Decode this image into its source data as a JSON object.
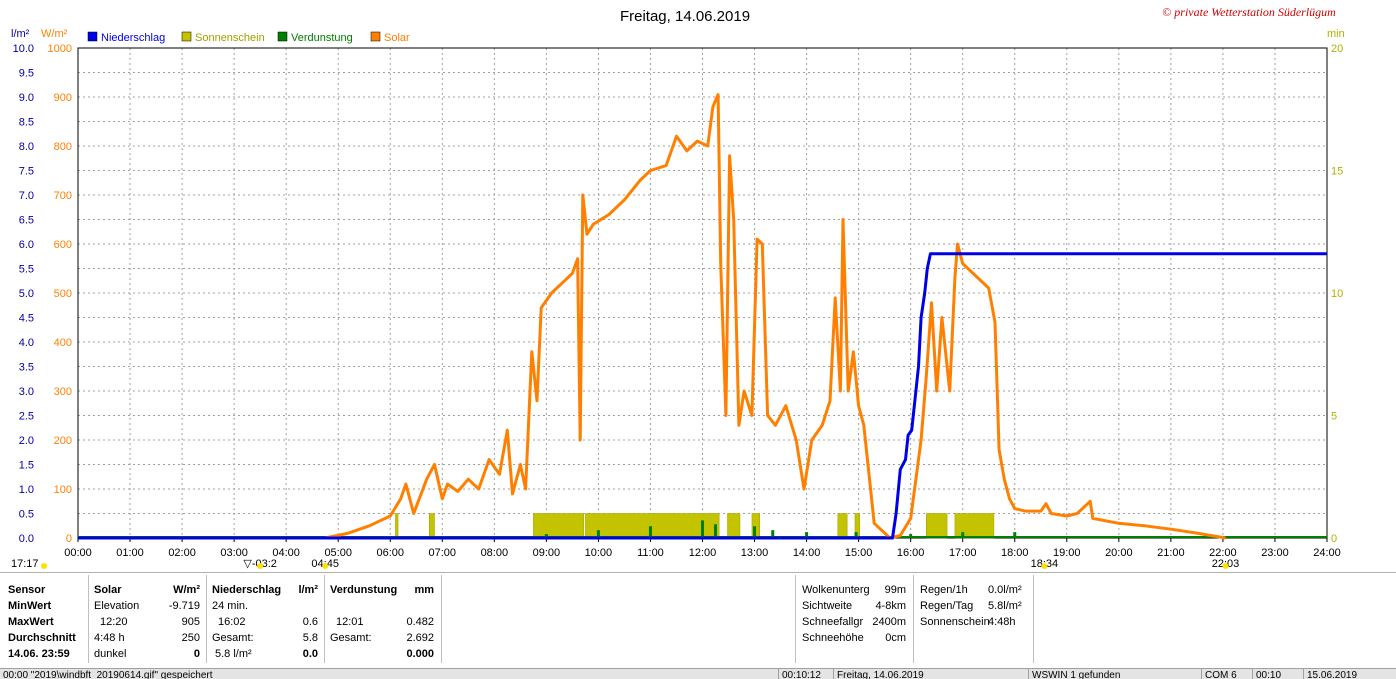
{
  "chart_data": {
    "type": "line",
    "title": "Freitag, 14.06.2019",
    "copyright": "© private Wetterstation Süderlügum",
    "left_axis1_unit": "l/m²",
    "left_axis2_unit": "W/m²",
    "right_axis_unit": "min",
    "left_axis1_ticks": [
      "10.0",
      "9.5",
      "9.0",
      "8.5",
      "8.0",
      "7.5",
      "7.0",
      "6.5",
      "6.0",
      "5.5",
      "5.0",
      "4.5",
      "4.0",
      "3.5",
      "3.0",
      "2.5",
      "2.0",
      "1.5",
      "1.0",
      "0.5",
      "0.0"
    ],
    "left_axis2_ticks": [
      "1000",
      "900",
      "800",
      "700",
      "600",
      "500",
      "400",
      "300",
      "200",
      "100",
      "0"
    ],
    "right_axis_ticks": [
      "20",
      "15",
      "10",
      "5",
      "0"
    ],
    "x_ticks": [
      "00:00",
      "01:00",
      "02:00",
      "03:00",
      "04:00",
      "05:00",
      "06:00",
      "07:00",
      "08:00",
      "09:00",
      "10:00",
      "11:00",
      "12:00",
      "13:00",
      "14:00",
      "15:00",
      "16:00",
      "17:00",
      "18:00",
      "19:00",
      "20:00",
      "21:00",
      "22:00",
      "23:00",
      "24:00"
    ],
    "ylim_precip": [
      0,
      10
    ],
    "ylim_solar": [
      0,
      1000
    ],
    "ylim_minutes": [
      0,
      20
    ],
    "xlim_hours": [
      0,
      24
    ],
    "legend": [
      {
        "name": "Niederschlag",
        "color": "#0000e6"
      },
      {
        "name": "Sonnenschein",
        "color": "#c3c300"
      },
      {
        "name": "Verdunstung",
        "color": "#008000"
      },
      {
        "name": "Solar",
        "color": "#ff8000"
      }
    ],
    "markers": [
      {
        "label": "17:17",
        "hour": 0.0
      },
      {
        "label": "▽-03:2",
        "hour": 3.5
      },
      {
        "label": "04:45",
        "hour": 4.75
      },
      {
        "label": "18:34",
        "hour": 18.57
      },
      {
        "label": "22:03",
        "hour": 22.05
      }
    ],
    "sunshine_blocks": [
      [
        8.75,
        9.72
      ],
      [
        9.75,
        12.32
      ],
      [
        12.48,
        12.72
      ],
      [
        12.95,
        13.1
      ],
      [
        14.6,
        14.78
      ],
      [
        14.93,
        15.02
      ],
      [
        16.3,
        16.7
      ],
      [
        16.85,
        17.6
      ],
      [
        6.1,
        6.15
      ],
      [
        6.75,
        6.85
      ]
    ],
    "evaporation_ticks": [
      [
        9.0,
        0.02
      ],
      [
        10.0,
        0.04
      ],
      [
        11.0,
        0.06
      ],
      [
        12.0,
        0.09
      ],
      [
        12.25,
        0.07
      ],
      [
        13.0,
        0.06
      ],
      [
        13.35,
        0.04
      ],
      [
        14.0,
        0.03
      ],
      [
        14.95,
        0.03
      ],
      [
        16.0,
        0.02
      ],
      [
        17.0,
        0.03
      ],
      [
        18.0,
        0.03
      ]
    ],
    "precipitation_series": [
      [
        0,
        0
      ],
      [
        15.65,
        0
      ],
      [
        15.72,
        0.5
      ],
      [
        15.8,
        1.4
      ],
      [
        15.9,
        1.6
      ],
      [
        15.95,
        2.1
      ],
      [
        16.02,
        2.2
      ],
      [
        16.1,
        3.0
      ],
      [
        16.15,
        3.5
      ],
      [
        16.2,
        4.5
      ],
      [
        16.27,
        5.0
      ],
      [
        16.32,
        5.5
      ],
      [
        16.38,
        5.8
      ],
      [
        24,
        5.8
      ]
    ],
    "solar_series": [
      [
        4.75,
        0
      ],
      [
        5.2,
        10
      ],
      [
        5.6,
        25
      ],
      [
        6.0,
        45
      ],
      [
        6.2,
        80
      ],
      [
        6.3,
        110
      ],
      [
        6.45,
        50
      ],
      [
        6.7,
        120
      ],
      [
        6.85,
        150
      ],
      [
        7.0,
        80
      ],
      [
        7.1,
        110
      ],
      [
        7.3,
        95
      ],
      [
        7.5,
        120
      ],
      [
        7.7,
        100
      ],
      [
        7.9,
        160
      ],
      [
        8.1,
        130
      ],
      [
        8.25,
        220
      ],
      [
        8.35,
        90
      ],
      [
        8.5,
        150
      ],
      [
        8.6,
        100
      ],
      [
        8.72,
        380
      ],
      [
        8.82,
        280
      ],
      [
        8.9,
        470
      ],
      [
        9.1,
        500
      ],
      [
        9.3,
        520
      ],
      [
        9.5,
        540
      ],
      [
        9.6,
        570
      ],
      [
        9.65,
        200
      ],
      [
        9.7,
        700
      ],
      [
        9.78,
        620
      ],
      [
        9.9,
        640
      ],
      [
        10.2,
        660
      ],
      [
        10.5,
        690
      ],
      [
        10.8,
        730
      ],
      [
        11.0,
        750
      ],
      [
        11.3,
        760
      ],
      [
        11.5,
        820
      ],
      [
        11.7,
        790
      ],
      [
        11.9,
        810
      ],
      [
        12.1,
        800
      ],
      [
        12.2,
        880
      ],
      [
        12.3,
        905
      ],
      [
        12.35,
        560
      ],
      [
        12.45,
        250
      ],
      [
        12.52,
        780
      ],
      [
        12.6,
        650
      ],
      [
        12.7,
        230
      ],
      [
        12.8,
        300
      ],
      [
        12.95,
        250
      ],
      [
        13.05,
        610
      ],
      [
        13.15,
        600
      ],
      [
        13.25,
        250
      ],
      [
        13.4,
        230
      ],
      [
        13.6,
        270
      ],
      [
        13.8,
        200
      ],
      [
        13.95,
        100
      ],
      [
        14.1,
        200
      ],
      [
        14.3,
        230
      ],
      [
        14.45,
        280
      ],
      [
        14.55,
        490
      ],
      [
        14.65,
        300
      ],
      [
        14.7,
        650
      ],
      [
        14.8,
        300
      ],
      [
        14.9,
        380
      ],
      [
        15.0,
        270
      ],
      [
        15.1,
        230
      ],
      [
        15.3,
        30
      ],
      [
        15.6,
        0
      ],
      [
        15.8,
        5
      ],
      [
        16.0,
        40
      ],
      [
        16.2,
        200
      ],
      [
        16.3,
        330
      ],
      [
        16.4,
        480
      ],
      [
        16.5,
        300
      ],
      [
        16.6,
        450
      ],
      [
        16.75,
        300
      ],
      [
        16.85,
        530
      ],
      [
        16.9,
        600
      ],
      [
        17.0,
        560
      ],
      [
        17.2,
        540
      ],
      [
        17.5,
        510
      ],
      [
        17.62,
        440
      ],
      [
        17.7,
        180
      ],
      [
        17.8,
        120
      ],
      [
        17.9,
        80
      ],
      [
        18.0,
        60
      ],
      [
        18.2,
        55
      ],
      [
        18.5,
        55
      ],
      [
        18.6,
        70
      ],
      [
        18.7,
        50
      ],
      [
        19.0,
        45
      ],
      [
        19.2,
        50
      ],
      [
        19.45,
        75
      ],
      [
        19.5,
        40
      ],
      [
        20.0,
        30
      ],
      [
        20.5,
        25
      ],
      [
        21.0,
        18
      ],
      [
        21.5,
        10
      ],
      [
        22.05,
        0
      ]
    ],
    "info": {
      "sensor_label": "Sensor",
      "solar_head": "Solar",
      "solar_unit": "W/m²",
      "precip_head": "Niederschlag",
      "precip_unit": "l/m²",
      "evap_head": "Verdunstung",
      "evap_unit": "mm",
      "rows": {
        "minwert": "MinWert",
        "maxwert": "MaxWert",
        "durchschnitt": "Durchschnitt",
        "date": "14.06. 23:59"
      },
      "solar": {
        "elevation_label": "Elevation",
        "elevation_value": "-9.719",
        "max_time": "12:20",
        "max_value": "905",
        "avg_time": "4:48 h",
        "avg_value": "250",
        "dunkel_label": "dunkel",
        "dunkel_value": "0"
      },
      "precip": {
        "min_label": "24 min.",
        "max_time": "16:02",
        "max_value": "0.6",
        "gesamt_label": "Gesamt:",
        "gesamt_value": "5.8",
        "total": "5.8 l/m²",
        "total2": "0.0"
      },
      "evap": {
        "max_time": "12:01",
        "max_value": "0.482",
        "gesamt_label": "Gesamt:",
        "gesamt_value": "2.692",
        "total": "0.000"
      },
      "weather": {
        "wolken_label": "Wolkenunterg",
        "wolken_value": "99m",
        "sicht_label": "Sichtweite",
        "sicht_value": "4-8km",
        "schneefall_label": "Schneefallgr",
        "schneefall_value": "2400m",
        "schneehoehe_label": "Schneehöhe",
        "schneehoehe_value": "0cm",
        "regen1h_label": "Regen/1h",
        "regen1h_value": "0.0l/m²",
        "regentag_label": "Regen/Tag",
        "regentag_value": "5.8l/m²",
        "sonne_label": "Sonnenschein",
        "sonne_value": "4:48h"
      }
    }
  },
  "status_bar": {
    "msg": "00:00  \"2019\\windbft_20190614.gif\"  gespeichert",
    "time1": "00:10:12",
    "date_text": "Freitag, 14.06.2019",
    "wswin": "WSWIN 1 gefunden",
    "com": "COM 6",
    "time2": "00:10",
    "date2": "15.06.2019"
  },
  "colors": {
    "precip": "#0000e6",
    "sunshine": "#c3c300",
    "evap": "#008000",
    "solar": "#ff8000",
    "left_axis": "#0000a0",
    "right_axis": "#b0b000",
    "copyright": "#d00000"
  }
}
